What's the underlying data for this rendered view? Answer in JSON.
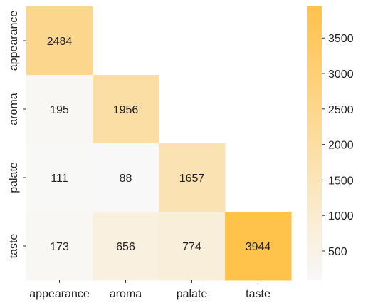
{
  "chart_data": {
    "type": "heatmap",
    "title": "",
    "xlabel": "",
    "ylabel": "",
    "x_categories": [
      "appearance",
      "aroma",
      "palate",
      "taste"
    ],
    "y_categories": [
      "appearance",
      "aroma",
      "palate",
      "taste"
    ],
    "matrix": [
      [
        2484,
        null,
        null,
        null
      ],
      [
        195,
        1956,
        null,
        null
      ],
      [
        111,
        88,
        1657,
        null
      ],
      [
        173,
        656,
        774,
        3944
      ]
    ],
    "mask": "upper triangle hidden",
    "colorbar": {
      "min": 88,
      "max": 3944,
      "ticks": [
        500,
        1000,
        1500,
        2000,
        2500,
        3000,
        3500
      ],
      "low_color": "#f8f8f8",
      "high_color": "#ffc24b"
    },
    "annotations": true,
    "grid": false
  }
}
